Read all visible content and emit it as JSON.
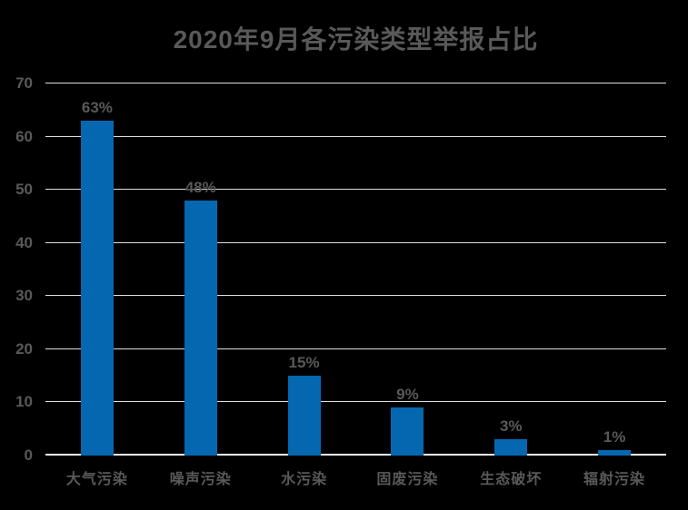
{
  "colors": {
    "background": "#000000",
    "bar": "#0667B1",
    "text": "#595959",
    "gridline": "#DFDFDF",
    "axis_line": "#F0F0F0"
  },
  "chart_data": {
    "type": "bar",
    "title": "2020年9月各污染类型举报占比",
    "categories": [
      "大气污染",
      "噪声污染",
      "水污染",
      "固废污染",
      "生态破坏",
      "辐射污染"
    ],
    "values": [
      63,
      48,
      15,
      9,
      3,
      1
    ],
    "data_labels": [
      "63%",
      "48%",
      "15%",
      "9%",
      "3%",
      "1%"
    ],
    "xlabel": "",
    "ylabel": "",
    "ylim": [
      0,
      70
    ],
    "yticks": [
      0,
      10,
      20,
      30,
      40,
      50,
      60,
      70
    ],
    "grid": true,
    "legend_position": "none"
  }
}
